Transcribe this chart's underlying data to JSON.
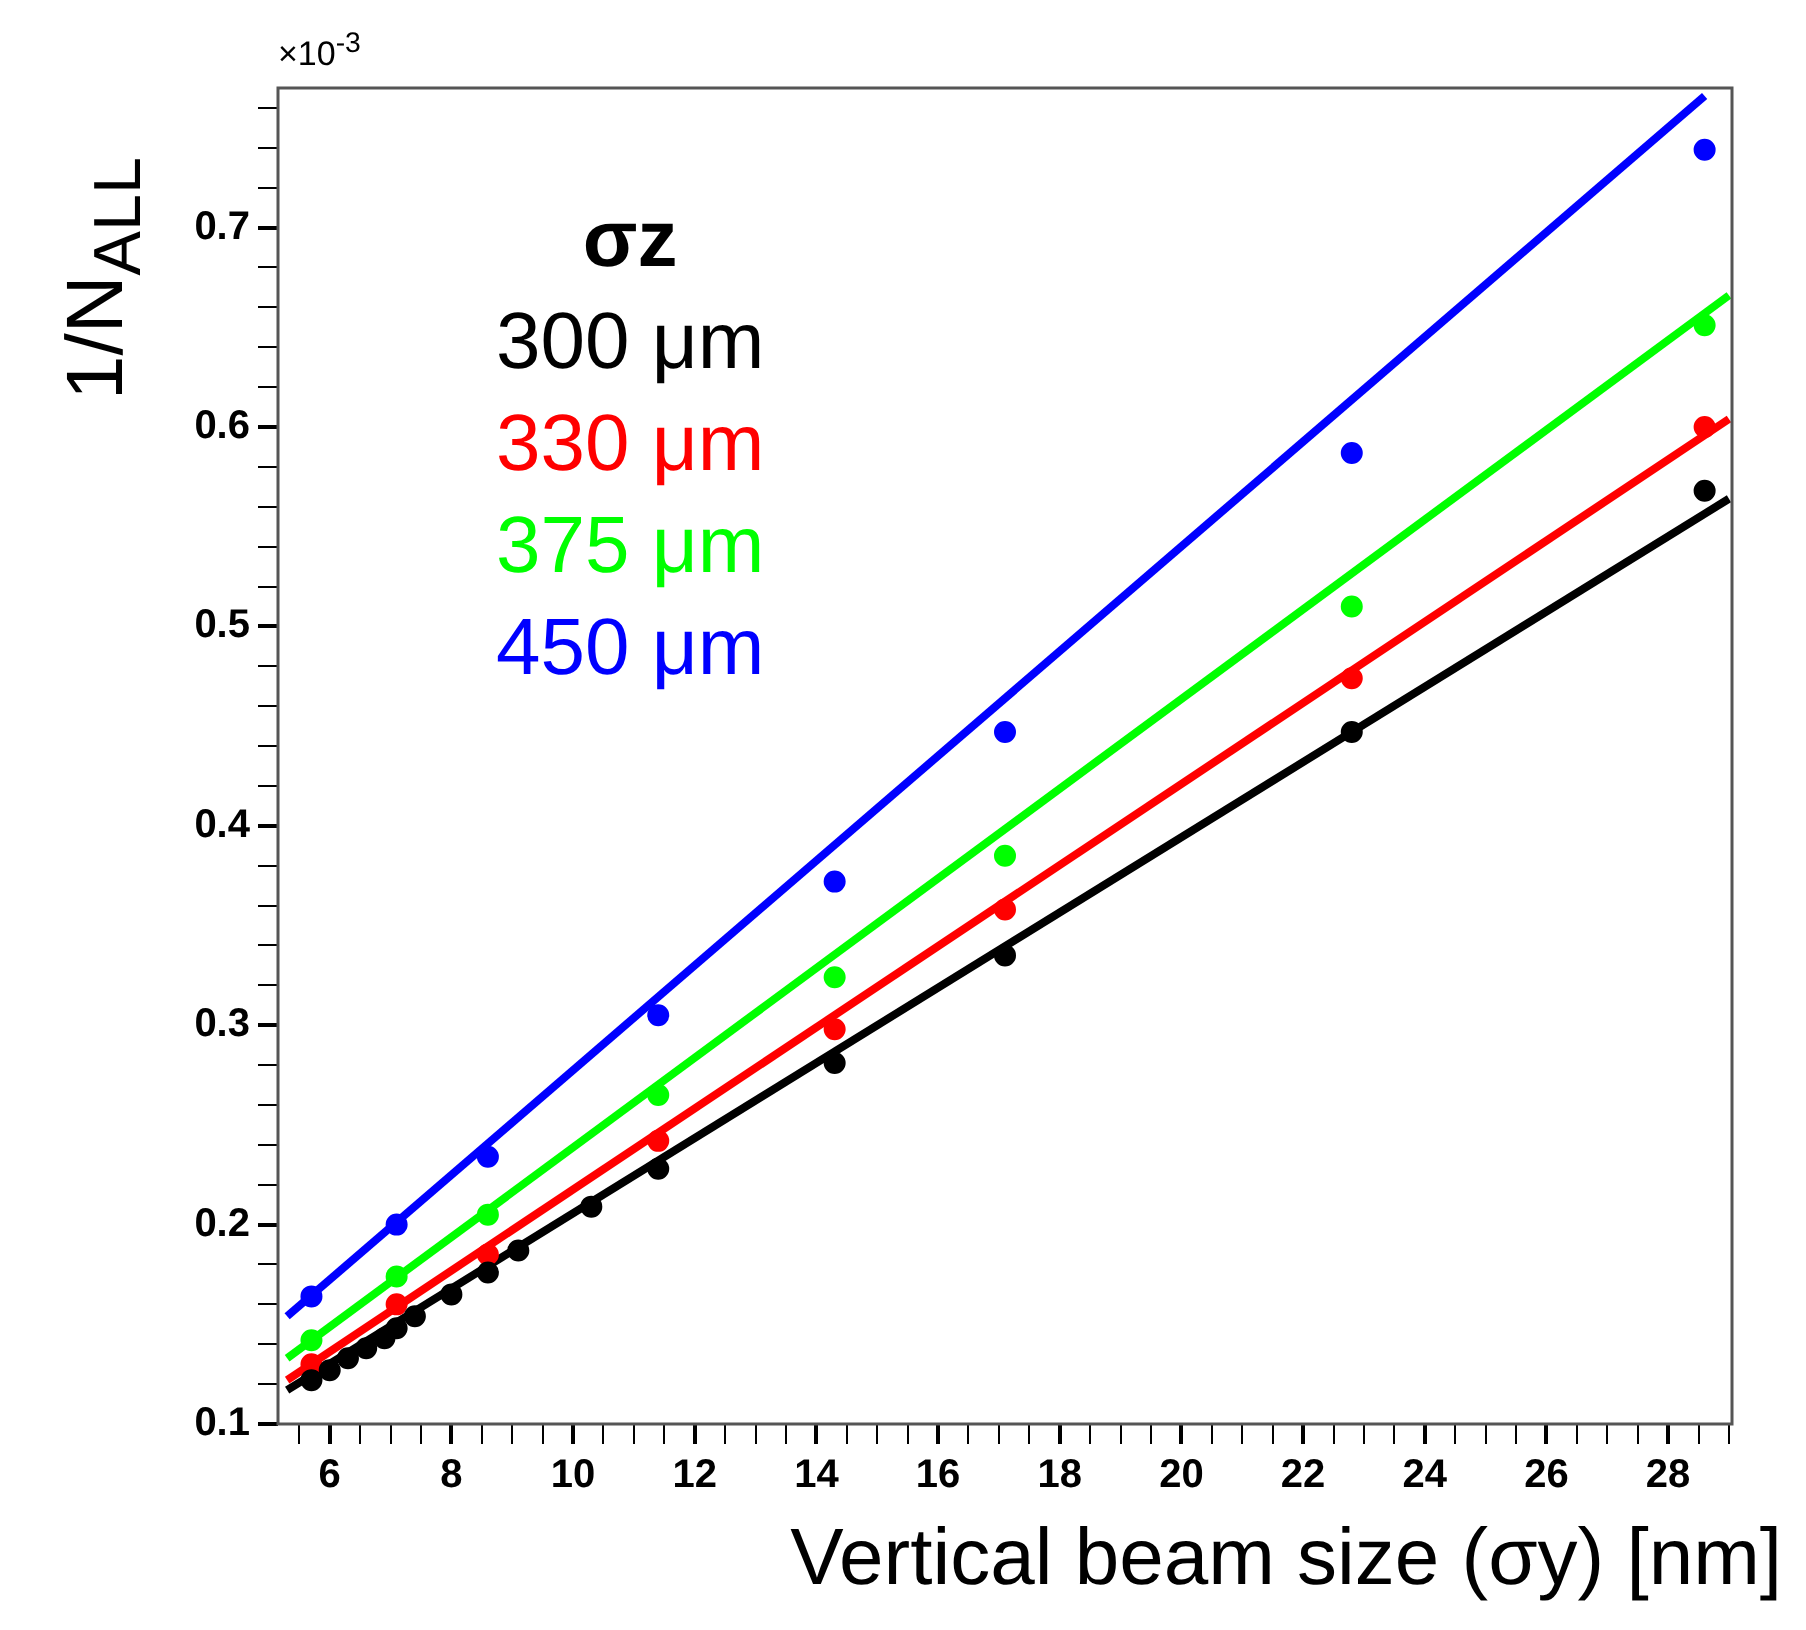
{
  "chart_data": {
    "type": "scatter",
    "xlabel": "Vertical beam size (σy) [nm]",
    "ylabel": "1/N$_{ALL}$",
    "legend_title": "σz",
    "legend": "top left",
    "marker": "circle",
    "grid": false,
    "annotations": [
      "×10$^{-3}$"
    ],
    "xlim": [
      5.15,
      29.05
    ],
    "ylim": [
      0.1,
      0.77
    ],
    "xticks": [
      {
        "value": 5.5,
        "label": null
      },
      6,
      {
        "value": 6.5,
        "label": null
      },
      {
        "value": 7,
        "label": null
      },
      {
        "value": 7.5,
        "label": null
      },
      8,
      {
        "value": 8.5,
        "label": null
      },
      {
        "value": 9,
        "label": null
      },
      {
        "value": 9.5,
        "label": null
      },
      10,
      {
        "value": 10.5,
        "label": null
      },
      {
        "value": 11,
        "label": null
      },
      {
        "value": 11.5,
        "label": null
      },
      12,
      {
        "value": 12.5,
        "label": null
      },
      {
        "value": 13,
        "label": null
      },
      {
        "value": 13.5,
        "label": null
      },
      14,
      {
        "value": 14.5,
        "label": null
      },
      {
        "value": 15,
        "label": null
      },
      {
        "value": 15.5,
        "label": null
      },
      16,
      {
        "value": 16.5,
        "label": null
      },
      {
        "value": 17,
        "label": null
      },
      {
        "value": 17.5,
        "label": null
      },
      18,
      {
        "value": 18.5,
        "label": null
      },
      {
        "value": 19,
        "label": null
      },
      {
        "value": 19.5,
        "label": null
      },
      20,
      {
        "value": 20.5,
        "label": null
      },
      {
        "value": 21,
        "label": null
      },
      {
        "value": 21.5,
        "label": null
      },
      22,
      {
        "value": 22.5,
        "label": null
      },
      {
        "value": 23,
        "label": null
      },
      {
        "value": 23.5,
        "label": null
      },
      24,
      {
        "value": 24.5,
        "label": null
      },
      {
        "value": 25,
        "label": null
      },
      {
        "value": 25.5,
        "label": null
      },
      26,
      {
        "value": 26.5,
        "label": null
      },
      {
        "value": 27,
        "label": null
      },
      {
        "value": 27.5,
        "label": null
      },
      28,
      {
        "value": 28.5,
        "label": null
      },
      {
        "value": 29,
        "label": null
      }
    ],
    "yticks": [
      0.1,
      {
        "value": 0.12,
        "label": null
      },
      {
        "value": 0.14,
        "label": null
      },
      {
        "value": 0.16,
        "label": null
      },
      {
        "value": 0.18,
        "label": null
      },
      0.2,
      {
        "value": 0.22,
        "label": null
      },
      {
        "value": 0.24,
        "label": null
      },
      {
        "value": 0.26,
        "label": null
      },
      {
        "value": 0.28,
        "label": null
      },
      0.3,
      {
        "value": 0.32,
        "label": null
      },
      {
        "value": 0.34,
        "label": null
      },
      {
        "value": 0.36,
        "label": null
      },
      {
        "value": 0.38,
        "label": null
      },
      0.4,
      {
        "value": 0.42,
        "label": null
      },
      {
        "value": 0.44,
        "label": null
      },
      {
        "value": 0.46,
        "label": null
      },
      {
        "value": 0.48,
        "label": null
      },
      0.5,
      {
        "value": 0.52,
        "label": null
      },
      {
        "value": 0.54,
        "label": null
      },
      {
        "value": 0.56,
        "label": null
      },
      {
        "value": 0.58,
        "label": null
      },
      0.6,
      {
        "value": 0.62,
        "label": null
      },
      {
        "value": 0.64,
        "label": null
      },
      {
        "value": 0.66,
        "label": null
      },
      {
        "value": 0.68,
        "label": null
      },
      0.7,
      {
        "value": 0.72,
        "label": null
      },
      {
        "value": 0.74,
        "label": null
      },
      {
        "value": 0.76,
        "label": null
      }
    ],
    "series": [
      {
        "name": "300 μm",
        "color": "#000000",
        "x": [
          5.7,
          6.0,
          6.3,
          6.6,
          6.9,
          7.1,
          7.4,
          8.0,
          8.6,
          9.1,
          10.3,
          11.4,
          14.3,
          17.1,
          22.8,
          28.6
        ],
        "values": [
          0.122,
          0.127,
          0.133,
          0.138,
          0.143,
          0.148,
          0.154,
          0.165,
          0.176,
          0.187,
          0.209,
          0.228,
          0.281,
          0.335,
          0.447,
          0.568
        ]
      },
      {
        "name": "330 μm",
        "color": "#ff0000",
        "x": [
          5.7,
          7.1,
          8.6,
          11.4,
          14.3,
          17.1,
          22.8,
          28.6
        ],
        "values": [
          0.13,
          0.16,
          0.185,
          0.242,
          0.298,
          0.358,
          0.474,
          0.6
        ]
      },
      {
        "name": "375 μm",
        "color": "#00ff00",
        "x": [
          5.7,
          7.1,
          8.6,
          11.4,
          14.3,
          17.1,
          22.8,
          28.6
        ],
        "values": [
          0.142,
          0.174,
          0.205,
          0.265,
          0.324,
          0.385,
          0.51,
          0.651
        ]
      },
      {
        "name": "450 μm",
        "color": "#0000ff",
        "x": [
          5.7,
          7.1,
          8.6,
          11.4,
          14.3,
          17.1,
          22.8,
          28.6
        ],
        "values": [
          0.164,
          0.2,
          0.234,
          0.305,
          0.372,
          0.447,
          0.587,
          0.739
        ]
      },
      {
        "type": "line",
        "marker": "none",
        "color": "#000000",
        "x": [
          5.3,
          29.0
        ],
        "values": [
          0.117,
          0.564
        ]
      },
      {
        "type": "line",
        "marker": "none",
        "color": "#ff0000",
        "x": [
          5.3,
          29.0
        ],
        "values": [
          0.122,
          0.604
        ]
      },
      {
        "type": "line",
        "marker": "none",
        "color": "#00ff00",
        "x": [
          5.3,
          29.0
        ],
        "values": [
          0.133,
          0.666
        ]
      },
      {
        "type": "line",
        "marker": "none",
        "color": "#0000ff",
        "x": [
          5.3,
          28.6
        ],
        "values": [
          0.154,
          0.766
        ]
      }
    ]
  }
}
